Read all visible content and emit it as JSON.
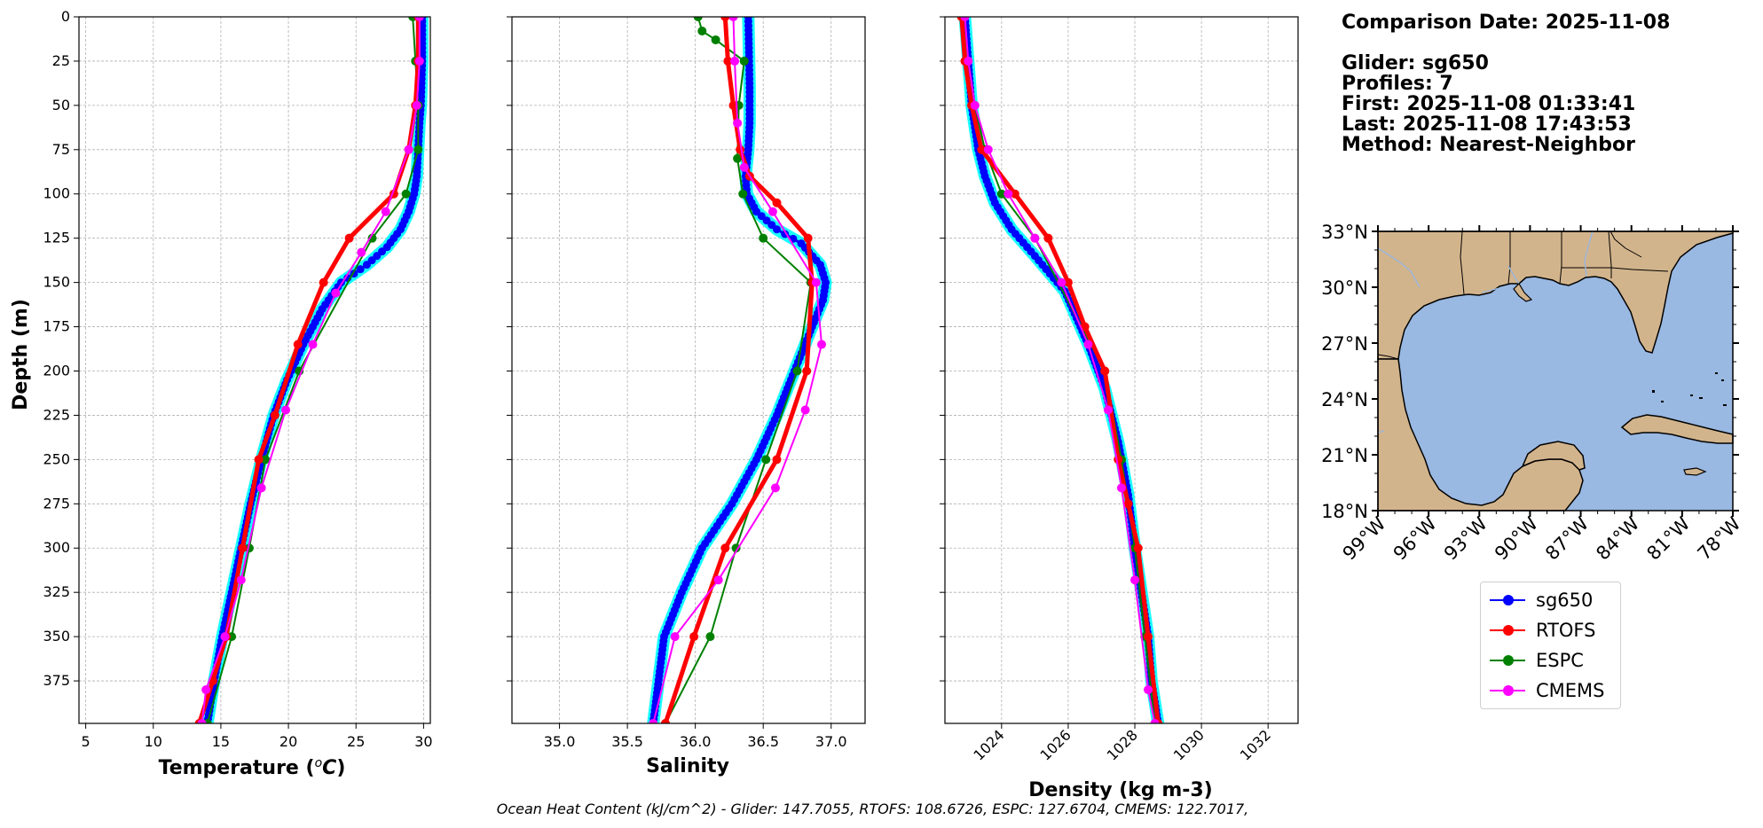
{
  "info": {
    "comparison_date": "Comparison Date: 2025-11-08",
    "glider": "Glider: sg650",
    "profiles": "Profiles: 7",
    "first": "First: 2025-11-08 01:33:41",
    "last": "Last: 2025-11-08 17:43:53",
    "method": "Method: Nearest-Neighbor"
  },
  "footer": "Ocean Heat Content (kJ/cm^2) - Glider: 147.7055,  RTOFS: 108.6726,  ESPC: 127.6704,  CMEMS: 122.7017,",
  "legend": [
    {
      "name": "sg650",
      "color": "#0000ff"
    },
    {
      "name": "RTOFS",
      "color": "#ff0000"
    },
    {
      "name": "ESPC",
      "color": "#008000"
    },
    {
      "name": "CMEMS",
      "color": "#ff00ff"
    }
  ],
  "map": {
    "lat_ticks": [
      "18°N",
      "21°N",
      "24°N",
      "27°N",
      "30°N",
      "33°N"
    ],
    "lon_ticks": [
      "99°W",
      "96°W",
      "93°W",
      "90°W",
      "87°W",
      "84°W",
      "81°W",
      "78°W"
    ],
    "land_color": "#d2b48c",
    "ocean_color": "#99b8e2"
  },
  "chart_data": [
    {
      "type": "line",
      "xlabel": "Temperature (°C)",
      "ylabel": "Depth (m)",
      "xlim": [
        4.5,
        30.5
      ],
      "ylim": [
        399,
        0
      ],
      "xticks": [
        5,
        10,
        15,
        20,
        25,
        30
      ],
      "yticks": [
        0,
        25,
        50,
        75,
        100,
        125,
        150,
        175,
        200,
        225,
        250,
        275,
        300,
        325,
        350,
        375
      ],
      "grid": true,
      "series": [
        {
          "name": "sg650",
          "color": "#0000ff",
          "x": [
            29.9,
            29.9,
            29.8,
            29.7,
            29.6,
            29.5,
            29.3,
            28.9,
            28.3,
            27.3,
            25.8,
            23.9,
            22.5,
            21.1,
            19.9,
            18.9,
            18.0,
            17.2,
            16.5,
            15.8,
            15.1,
            14.5,
            14.0
          ],
          "y": [
            0,
            25,
            50,
            60,
            75,
            90,
            100,
            110,
            120,
            130,
            140,
            150,
            165,
            185,
            205,
            225,
            250,
            275,
            300,
            325,
            350,
            375,
            399
          ]
        },
        {
          "name": "RTOFS",
          "color": "#ff0000",
          "x": [
            29.6,
            29.6,
            29.4,
            28.9,
            27.8,
            24.5,
            22.6,
            20.7,
            19.0,
            17.8,
            16.6,
            15.4,
            14.4,
            13.4
          ],
          "y": [
            0,
            25,
            50,
            75,
            100,
            125,
            150,
            185,
            225,
            250,
            300,
            350,
            375,
            399
          ]
        },
        {
          "name": "ESPC",
          "color": "#008000",
          "x": [
            29.2,
            29.4,
            29.6,
            29.6,
            28.7,
            26.2,
            20.8,
            18.3,
            17.1,
            15.8,
            14.0
          ],
          "y": [
            0,
            25,
            50,
            75,
            100,
            125,
            200,
            250,
            300,
            350,
            399
          ]
        },
        {
          "name": "CMEMS",
          "color": "#ff00ff",
          "x": [
            29.7,
            29.7,
            29.5,
            28.9,
            27.2,
            25.4,
            23.5,
            21.8,
            19.8,
            18.0,
            16.5,
            15.3,
            13.9,
            13.6
          ],
          "y": [
            0,
            25,
            50,
            75,
            110,
            133,
            156,
            185,
            222,
            266,
            318,
            350,
            380,
            399
          ]
        }
      ]
    },
    {
      "type": "line",
      "xlabel": "Salinity",
      "xlim": [
        34.65,
        37.25
      ],
      "ylim": [
        399,
        0
      ],
      "xticks": [
        35.0,
        35.5,
        36.0,
        36.5,
        37.0
      ],
      "grid": true,
      "series": [
        {
          "name": "sg650",
          "color": "#0000ff",
          "x": [
            36.39,
            36.4,
            36.4,
            36.39,
            36.37,
            36.38,
            36.45,
            36.6,
            36.78,
            36.92,
            36.96,
            36.94,
            36.86,
            36.73,
            36.6,
            36.45,
            36.27,
            36.05,
            35.9,
            35.77,
            35.69
          ],
          "y": [
            0,
            40,
            60,
            75,
            90,
            100,
            110,
            120,
            128,
            140,
            150,
            160,
            175,
            200,
            225,
            250,
            275,
            300,
            325,
            350,
            399
          ]
        },
        {
          "name": "RTOFS",
          "color": "#ff0000",
          "x": [
            36.22,
            36.24,
            36.28,
            36.33,
            36.4,
            36.6,
            36.83,
            36.86,
            36.82,
            36.6,
            36.22,
            35.99,
            35.78
          ],
          "y": [
            0,
            25,
            50,
            75,
            90,
            105,
            125,
            150,
            200,
            250,
            300,
            350,
            399
          ]
        },
        {
          "name": "ESPC",
          "color": "#008000",
          "x": [
            36.02,
            36.05,
            36.15,
            36.36,
            36.32,
            36.31,
            36.35,
            36.5,
            36.85,
            36.75,
            36.52,
            36.3,
            36.11,
            35.78
          ],
          "y": [
            0,
            8,
            13,
            25,
            50,
            80,
            100,
            125,
            150,
            200,
            250,
            300,
            350,
            399
          ]
        },
        {
          "name": "CMEMS",
          "color": "#ff00ff",
          "x": [
            36.28,
            36.29,
            36.31,
            36.36,
            36.57,
            36.89,
            36.93,
            36.81,
            36.59,
            36.17,
            35.85,
            35.69
          ],
          "y": [
            0,
            25,
            60,
            85,
            110,
            150,
            185,
            222,
            266,
            318,
            350,
            399
          ]
        }
      ]
    },
    {
      "type": "line",
      "xlabel": "Density (kg m-3)",
      "xlim": [
        1022.3,
        1032.9
      ],
      "ylim": [
        399,
        0
      ],
      "xticks": [
        1024,
        1026,
        1028,
        1030,
        1032
      ],
      "grid": true,
      "series": [
        {
          "name": "sg650",
          "color": "#0000ff",
          "x": [
            1022.9,
            1023.0,
            1023.1,
            1023.3,
            1023.5,
            1023.8,
            1024.3,
            1025.0,
            1025.9,
            1026.6,
            1027.1,
            1027.5,
            1027.8,
            1028.0,
            1028.2,
            1028.4,
            1028.5,
            1028.7
          ],
          "y": [
            0,
            25,
            50,
            75,
            90,
            105,
            120,
            135,
            155,
            185,
            210,
            240,
            270,
            300,
            325,
            350,
            375,
            399
          ]
        },
        {
          "name": "RTOFS",
          "color": "#ff0000",
          "x": [
            1022.8,
            1022.9,
            1023.1,
            1023.4,
            1024.4,
            1025.4,
            1026.0,
            1026.5,
            1027.1,
            1027.5,
            1027.8,
            1028.1,
            1028.4,
            1028.7
          ],
          "y": [
            0,
            25,
            50,
            75,
            100,
            125,
            150,
            175,
            200,
            250,
            275,
            300,
            350,
            399
          ]
        },
        {
          "name": "ESPC",
          "color": "#008000",
          "x": [
            1022.8,
            1023.0,
            1023.2,
            1023.5,
            1024.0,
            1025.0,
            1027.1,
            1027.6,
            1028.0,
            1028.3,
            1028.6
          ],
          "y": [
            0,
            25,
            50,
            75,
            100,
            125,
            200,
            250,
            300,
            350,
            399
          ]
        },
        {
          "name": "CMEMS",
          "color": "#ff00ff",
          "x": [
            1022.9,
            1023.0,
            1023.2,
            1023.6,
            1024.2,
            1025.0,
            1025.8,
            1026.6,
            1027.2,
            1027.6,
            1028.0,
            1028.4,
            1028.6
          ],
          "y": [
            0,
            25,
            50,
            75,
            100,
            125,
            150,
            185,
            222,
            266,
            318,
            380,
            399
          ]
        }
      ]
    }
  ]
}
